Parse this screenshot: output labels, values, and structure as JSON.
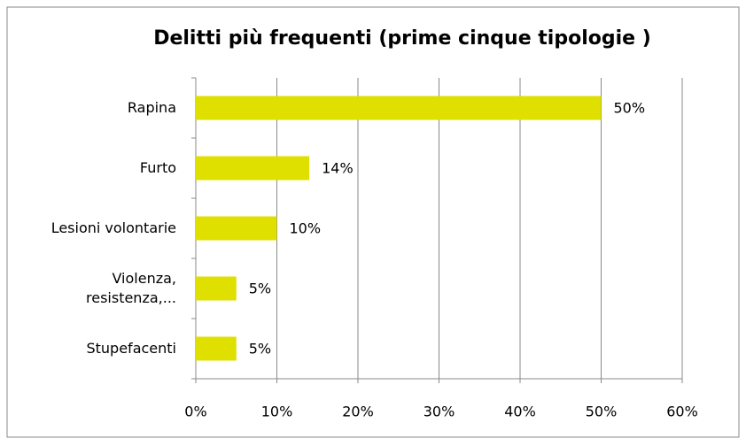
{
  "chart_data": {
    "type": "bar",
    "orientation": "horizontal",
    "title": "Delitti più frequenti (prime cinque tipologie )",
    "categories": [
      "Rapina",
      "Furto",
      "Lesioni volontarie",
      "Violenza, resistenza,...",
      "Stupefacenti"
    ],
    "values": [
      50,
      14,
      10,
      5,
      5
    ],
    "value_labels": [
      "50%",
      "14%",
      "10%",
      "5%",
      "5%"
    ],
    "color": "#dfdf00",
    "xlim": [
      0,
      60
    ],
    "xticks": [
      {
        "value": 0,
        "label": "0%"
      },
      {
        "value": 10,
        "label": "10%"
      },
      {
        "value": 20,
        "label": "20%"
      },
      {
        "value": 30,
        "label": "30%"
      },
      {
        "value": 40,
        "label": "40%"
      },
      {
        "value": 50,
        "label": "50%"
      },
      {
        "value": 60,
        "label": "60%"
      }
    ],
    "grid": true
  }
}
